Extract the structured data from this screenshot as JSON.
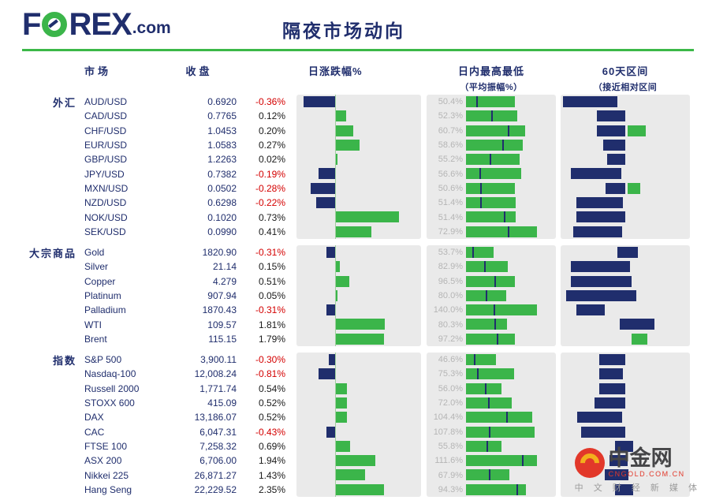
{
  "colors": {
    "navy": "#202e6d",
    "green": "#3bb54a",
    "red": "#d40000",
    "panel_gray": "#eaeaea",
    "label_gray": "#b5b5b5",
    "rule_green": "#3cb848"
  },
  "header": {
    "logo_f": "F",
    "logo_rex": "REX",
    "logo_suffix": ".com",
    "title": "隔夜市场动向"
  },
  "columns": {
    "market": "市场",
    "close": "收盘",
    "daily_change": "日涨跌幅%",
    "intraday_title": "日内最高最低",
    "intraday_sub": "（平均振幅%）",
    "range_title": "60天区间",
    "range_sub": "（接近相对区间"
  },
  "watermark": {
    "name": "中金网",
    "domain": "CNGOLD.COM.CN",
    "tagline": "中 文 财 经 新 媒 体"
  },
  "chart_data": {
    "type": "table",
    "title": "隔夜市场动向",
    "column_headers": [
      "市场",
      "收盘",
      "日涨跌幅%",
      "日内最高最低（平均振幅%）",
      "60天区间（接近相对区间"
    ],
    "sections": [
      {
        "label": "外汇",
        "key": "forex",
        "rows": [
          {
            "name": "AUD/USD",
            "close": "0.6920",
            "pct": "-0.36%",
            "pct_value": -0.36,
            "amp": "50.4%",
            "amp_value": 50.4,
            "amp_tick": 0.22,
            "range": [
              0.02,
              0.44
            ],
            "range_green": null
          },
          {
            "name": "CAD/USD",
            "close": "0.7765",
            "pct": "0.12%",
            "pct_value": 0.12,
            "amp": "52.3%",
            "amp_value": 52.3,
            "amp_tick": 0.5,
            "range": [
              0.28,
              0.5
            ],
            "range_green": null
          },
          {
            "name": "CHF/USD",
            "close": "1.0453",
            "pct": "0.20%",
            "pct_value": 0.2,
            "amp": "60.7%",
            "amp_value": 60.7,
            "amp_tick": 0.72,
            "range": [
              0.28,
              0.5
            ],
            "range_green": [
              0.52,
              0.66
            ]
          },
          {
            "name": "EUR/USD",
            "close": "1.0583",
            "pct": "0.27%",
            "pct_value": 0.27,
            "amp": "58.6%",
            "amp_value": 58.6,
            "amp_tick": 0.65,
            "range": [
              0.33,
              0.5
            ],
            "range_green": null
          },
          {
            "name": "GBP/USD",
            "close": "1.2263",
            "pct": "0.02%",
            "pct_value": 0.02,
            "amp": "55.2%",
            "amp_value": 55.2,
            "amp_tick": 0.45,
            "range": [
              0.36,
              0.5
            ],
            "range_green": null
          },
          {
            "name": "JPY/USD",
            "close": "0.7382",
            "pct": "-0.19%",
            "pct_value": -0.19,
            "amp": "56.6%",
            "amp_value": 56.6,
            "amp_tick": 0.25,
            "range": [
              0.08,
              0.47
            ],
            "range_green": null
          },
          {
            "name": "MXN/USD",
            "close": "0.0502",
            "pct": "-0.28%",
            "pct_value": -0.28,
            "amp": "50.6%",
            "amp_value": 50.6,
            "amp_tick": 0.3,
            "range": [
              0.35,
              0.5
            ],
            "range_green": [
              0.52,
              0.62
            ]
          },
          {
            "name": "NZD/USD",
            "close": "0.6298",
            "pct": "-0.22%",
            "pct_value": -0.22,
            "amp": "51.4%",
            "amp_value": 51.4,
            "amp_tick": 0.3,
            "range": [
              0.12,
              0.48
            ],
            "range_green": null
          },
          {
            "name": "NOK/USD",
            "close": "0.1020",
            "pct": "0.73%",
            "pct_value": 0.73,
            "amp": "51.4%",
            "amp_value": 51.4,
            "amp_tick": 0.78,
            "range": [
              0.12,
              0.5
            ],
            "range_green": null
          },
          {
            "name": "SEK/USD",
            "close": "0.0990",
            "pct": "0.41%",
            "pct_value": 0.41,
            "amp": "72.9%",
            "amp_value": 72.9,
            "amp_tick": 0.6,
            "range": [
              0.1,
              0.48
            ],
            "range_green": null
          }
        ]
      },
      {
        "label": "大宗商品",
        "key": "commodities",
        "rows": [
          {
            "name": "Gold",
            "close": "1820.90",
            "pct": "-0.31%",
            "pct_value": -0.31,
            "amp": "53.7%",
            "amp_value": 53.7,
            "amp_tick": 0.25,
            "range": [
              0.44,
              0.6
            ],
            "range_green": null
          },
          {
            "name": "Silver",
            "close": "21.14",
            "pct": "0.15%",
            "pct_value": 0.15,
            "amp": "82.9%",
            "amp_value": 82.9,
            "amp_tick": 0.45,
            "range": [
              0.08,
              0.54
            ],
            "range_green": null
          },
          {
            "name": "Copper",
            "close": "4.279",
            "pct": "0.51%",
            "pct_value": 0.51,
            "amp": "96.5%",
            "amp_value": 96.5,
            "amp_tick": 0.6,
            "range": [
              0.08,
              0.55
            ],
            "range_green": null
          },
          {
            "name": "Platinum",
            "close": "907.94",
            "pct": "0.05%",
            "pct_value": 0.05,
            "amp": "80.0%",
            "amp_value": 80.0,
            "amp_tick": 0.5,
            "range": [
              0.04,
              0.58
            ],
            "range_green": null
          },
          {
            "name": "Palladium",
            "close": "1870.43",
            "pct": "-0.31%",
            "pct_value": -0.31,
            "amp": "140.0%",
            "amp_value": 140.0,
            "amp_tick": 0.4,
            "range": [
              0.12,
              0.34
            ],
            "range_green": null
          },
          {
            "name": "WTI",
            "close": "109.57",
            "pct": "1.81%",
            "pct_value": 1.81,
            "amp": "80.3%",
            "amp_value": 80.3,
            "amp_tick": 0.72,
            "range": [
              0.46,
              0.73
            ],
            "range_green": null
          },
          {
            "name": "Brent",
            "close": "115.15",
            "pct": "1.79%",
            "pct_value": 1.79,
            "amp": "97.2%",
            "amp_value": 97.2,
            "amp_tick": 0.65,
            "range": null,
            "range_green": [
              0.55,
              0.67
            ]
          }
        ]
      },
      {
        "label": "指数",
        "key": "indices",
        "rows": [
          {
            "name": "S&P 500",
            "close": "3,900.11",
            "pct": "-0.30%",
            "pct_value": -0.3,
            "amp": "46.6%",
            "amp_value": 46.6,
            "amp_tick": 0.3,
            "range": [
              0.3,
              0.5
            ],
            "range_green": null
          },
          {
            "name": "Nasdaq-100",
            "close": "12,008.24",
            "pct": "-0.81%",
            "pct_value": -0.81,
            "amp": "75.3%",
            "amp_value": 75.3,
            "amp_tick": 0.25,
            "range": [
              0.3,
              0.48
            ],
            "range_green": null
          },
          {
            "name": "Russell 2000",
            "close": "1,771.74",
            "pct": "0.54%",
            "pct_value": 0.54,
            "amp": "56.0%",
            "amp_value": 56.0,
            "amp_tick": 0.55,
            "range": [
              0.3,
              0.5
            ],
            "range_green": null
          },
          {
            "name": "STOXX 600",
            "close": "415.09",
            "pct": "0.52%",
            "pct_value": 0.52,
            "amp": "72.0%",
            "amp_value": 72.0,
            "amp_tick": 0.5,
            "range": [
              0.26,
              0.5
            ],
            "range_green": null
          },
          {
            "name": "DAX",
            "close": "13,186.07",
            "pct": "0.52%",
            "pct_value": 0.52,
            "amp": "104.4%",
            "amp_value": 104.4,
            "amp_tick": 0.62,
            "range": [
              0.13,
              0.48
            ],
            "range_green": null
          },
          {
            "name": "CAC",
            "close": "6,047.31",
            "pct": "-0.43%",
            "pct_value": -0.43,
            "amp": "107.8%",
            "amp_value": 107.8,
            "amp_tick": 0.35,
            "range": [
              0.16,
              0.5
            ],
            "range_green": null
          },
          {
            "name": "FTSE 100",
            "close": "7,258.32",
            "pct": "0.69%",
            "pct_value": 0.69,
            "amp": "55.8%",
            "amp_value": 55.8,
            "amp_tick": 0.6,
            "range": [
              0.42,
              0.56
            ],
            "range_green": null
          },
          {
            "name": "ASX 200",
            "close": "6,706.00",
            "pct": "1.94%",
            "pct_value": 1.94,
            "amp": "111.6%",
            "amp_value": 111.6,
            "amp_tick": 0.8,
            "range": [
              0.38,
              0.52
            ],
            "range_green": null
          },
          {
            "name": "Nikkei 225",
            "close": "26,871.27",
            "pct": "1.43%",
            "pct_value": 1.43,
            "amp": "67.9%",
            "amp_value": 67.9,
            "amp_tick": 0.55,
            "range": [
              0.34,
              0.52
            ],
            "range_green": null
          },
          {
            "name": "Hang Seng",
            "close": "22,229.52",
            "pct": "2.35%",
            "pct_value": 2.35,
            "amp": "94.3%",
            "amp_value": 94.3,
            "amp_tick": 0.85,
            "range": [
              0.42,
              0.56
            ],
            "range_green": null
          }
        ]
      }
    ]
  }
}
